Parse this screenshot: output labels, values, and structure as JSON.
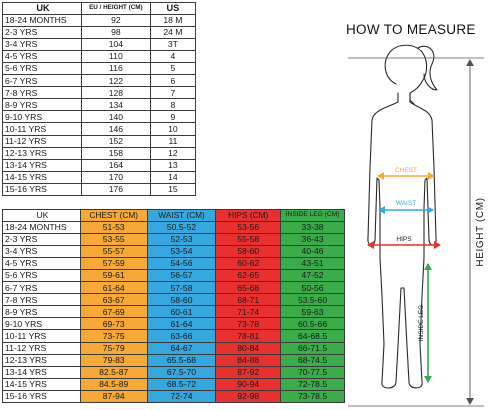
{
  "size_table": {
    "headers": {
      "uk": "UK",
      "eu": "EU / HEIGHT (CM)",
      "us": "US"
    },
    "rows": [
      [
        "18-24 MONTHS",
        "92",
        "18 M"
      ],
      [
        "2-3 YRS",
        "98",
        "24 M"
      ],
      [
        "3-4 YRS",
        "104",
        "3T"
      ],
      [
        "4-5 YRS",
        "110",
        "4"
      ],
      [
        "5-6 YRS",
        "116",
        "5"
      ],
      [
        "6-7 YRS",
        "122",
        "6"
      ],
      [
        "7-8 YRS",
        "128",
        "7"
      ],
      [
        "8-9 YRS",
        "134",
        "8"
      ],
      [
        "9-10 YRS",
        "140",
        "9"
      ],
      [
        "10-11 YRS",
        "146",
        "10"
      ],
      [
        "11-12 YRS",
        "152",
        "11"
      ],
      [
        "12-13 YRS",
        "158",
        "12"
      ],
      [
        "13-14 YRS",
        "164",
        "13"
      ],
      [
        "14-15 YRS",
        "170",
        "14"
      ],
      [
        "15-16 YRS",
        "176",
        "15"
      ]
    ]
  },
  "measure_table": {
    "headers": {
      "uk": "UK",
      "chest": "CHEST (CM)",
      "waist": "WAIST (CM)",
      "hips": "HIPS (CM)",
      "inside_leg": "INSIDE LEG (CM)"
    },
    "rows": [
      [
        "18-24 MONTHS",
        "51-53",
        "50.5-52",
        "53-56",
        "33-38"
      ],
      [
        "2-3 YRS",
        "53-55",
        "52-53",
        "55-58",
        "36-43"
      ],
      [
        "3-4 YRS",
        "55-57",
        "53-54",
        "58-60",
        "40-46"
      ],
      [
        "4-5 YRS",
        "57-59",
        "54-56",
        "60-62",
        "43-51"
      ],
      [
        "5-6 YRS",
        "59-61",
        "56-57",
        "62-65",
        "47-52"
      ],
      [
        "6-7 YRS",
        "61-64",
        "57-58",
        "65-68",
        "50-56"
      ],
      [
        "7-8 YRS",
        "63-67",
        "58-60",
        "68-71",
        "53.5-60"
      ],
      [
        "8-9 YRS",
        "67-69",
        "60-61",
        "71-74",
        "59-63"
      ],
      [
        "9-10 YRS",
        "69-73",
        "61-64",
        "73-78",
        "60.5-66"
      ],
      [
        "10-11 YRS",
        "73-75",
        "63-66",
        "78-81",
        "64-68.5"
      ],
      [
        "11-12 YRS",
        "75-79",
        "64-67",
        "80-84",
        "66-71.5"
      ],
      [
        "12-13 YRS",
        "79-83",
        "65.5-68",
        "84-88",
        "68-74.5"
      ],
      [
        "13-14 YRS",
        "82.5-87",
        "67.5-70",
        "87-92",
        "70-77.5"
      ],
      [
        "14-15 YRS",
        "84.5-89",
        "68.5-72",
        "90-94",
        "72-78.5"
      ],
      [
        "15-16 YRS",
        "87-94",
        "72-74",
        "92-98",
        "73-78.5"
      ]
    ]
  },
  "guide": {
    "title": "HOW TO MEASURE",
    "labels": {
      "chest": "CHEST",
      "waist": "WAIST",
      "hips": "HIPS",
      "inside_leg": "INSIDE LEG",
      "height": "HEIGHT (CM)"
    }
  },
  "colors": {
    "chest": "#f7a935",
    "waist": "#35a8df",
    "hips": "#e8312f",
    "inside_leg": "#3aac49"
  }
}
